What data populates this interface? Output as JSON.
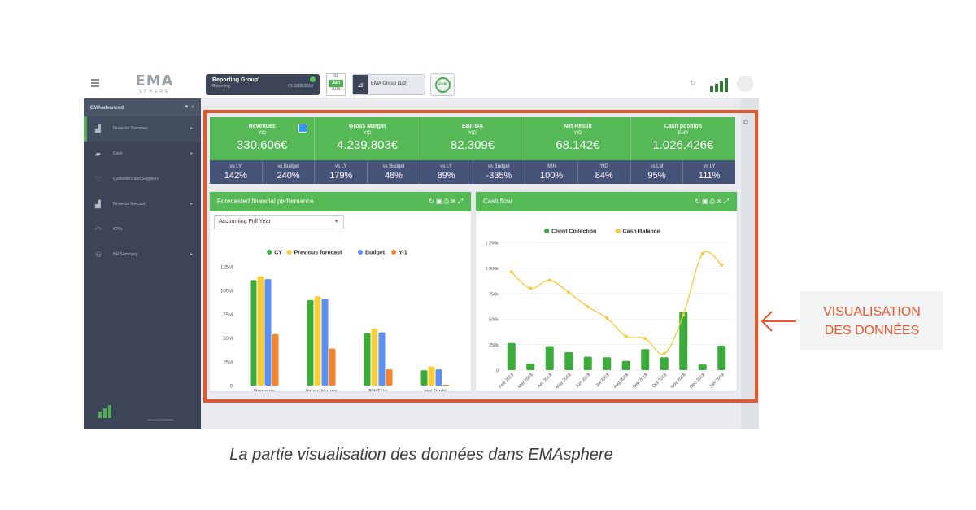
{
  "header": {
    "logo_main": "EMA",
    "logo_sub": "SPHERE",
    "reporting_group": {
      "title": "Reporting Group'",
      "sub": "Reporting",
      "right": "01.1888.2019"
    },
    "calendar": {
      "top": "31",
      "mid": "Jan",
      "bottom": "2019"
    },
    "group_label": "EMA Group (1/3)",
    "eom_label": "EoM"
  },
  "sidebar": {
    "header_label": "EMAadvanced",
    "items": [
      {
        "label": "Financial Summary",
        "icon": "chart-icon",
        "chevron": true
      },
      {
        "label": "Cash",
        "icon": "folder-icon",
        "chevron": true
      },
      {
        "label": "Customers and Suppliers",
        "icon": "handshake-icon",
        "chevron": false
      },
      {
        "label": "Financial forecast",
        "icon": "chart-icon",
        "chevron": true
      },
      {
        "label": "KPI's",
        "icon": "gauge-icon",
        "chevron": false
      },
      {
        "label": "HR Summary",
        "icon": "people-icon",
        "chevron": true
      }
    ],
    "powered_by": "Powered by EMAsphere"
  },
  "kpis": [
    {
      "title": "Revenues",
      "period": "YtD",
      "value": "330.606€"
    },
    {
      "title": "Gross Margin",
      "period": "YtD",
      "value": "4.239.803€"
    },
    {
      "title": "EBITDA",
      "period": "YtD",
      "value": "82.309€"
    },
    {
      "title": "Net Result",
      "period": "YtD",
      "value": "68.142€"
    },
    {
      "title": "Cash position",
      "period": "EoM",
      "value": "1.026.426€"
    }
  ],
  "comparisons": [
    {
      "label": "vs LY",
      "value": "142%"
    },
    {
      "label": "vs Budget",
      "value": "240%"
    },
    {
      "label": "vs LY",
      "value": "179%"
    },
    {
      "label": "vs Budget",
      "value": "48%"
    },
    {
      "label": "vs LY",
      "value": "89%"
    },
    {
      "label": "vs Budget",
      "value": "-335%"
    },
    {
      "label": "Mth",
      "value": "100%"
    },
    {
      "label": "YtD",
      "value": "84%"
    },
    {
      "label": "vs LM",
      "value": "95%"
    },
    {
      "label": "vs LY",
      "value": "111%"
    }
  ],
  "panels": {
    "forecast": {
      "title": "Forecasted financial performance",
      "select_value": "Accounting Full Year"
    },
    "cashflow": {
      "title": "Cash flow"
    }
  },
  "chart_data": [
    {
      "type": "bar",
      "title": "Forecasted financial performance",
      "categories": [
        "Revenue",
        "Gross Margin",
        "EBITDA",
        "Net Profit"
      ],
      "series": [
        {
          "name": "CY",
          "color": "#3bab3b",
          "values": [
            111,
            90,
            55,
            16
          ]
        },
        {
          "name": "Previous forecast",
          "color": "#f7cd3b",
          "values": [
            115,
            94,
            60,
            20
          ]
        },
        {
          "name": "Budget",
          "color": "#5b8ff0",
          "values": [
            112,
            91,
            56,
            17
          ]
        },
        {
          "name": "Y-1",
          "color": "#f5832a",
          "values": [
            54,
            39,
            17,
            1
          ]
        }
      ],
      "y_ticks": [
        "0",
        "25M",
        "50M",
        "75M",
        "100M",
        "125M"
      ],
      "ylim": [
        0,
        125
      ],
      "legend_position": "top-center",
      "grid": false
    },
    {
      "type": "bar+line",
      "title": "Cash flow",
      "categories": [
        "Feb 2018",
        "Mar 2018",
        "Apr 2018",
        "May 2018",
        "Jun 2018",
        "Jul 2018",
        "Aug 2018",
        "Sep 2018",
        "Oct 2018",
        "Nov 2018",
        "Dec 2018",
        "Jan 2019"
      ],
      "series": [
        {
          "name": "Client Collection",
          "type": "bar",
          "color": "#3bab3b",
          "values": [
            265000,
            65000,
            235000,
            175000,
            130000,
            125000,
            90000,
            205000,
            125000,
            570000,
            55000,
            240000
          ]
        },
        {
          "name": "Cash Balance",
          "type": "line",
          "color": "#f7c93b",
          "values": [
            960000,
            800000,
            880000,
            760000,
            620000,
            510000,
            330000,
            310000,
            160000,
            540000,
            1140000,
            1030000
          ]
        }
      ],
      "y_ticks": [
        "0",
        "250k",
        "500k",
        "750k",
        "1 000k",
        "1 250k"
      ],
      "ylim": [
        0,
        1250000
      ],
      "legend_position": "top-center",
      "grid": true
    }
  ],
  "annotation": {
    "line1": "VISUALISATION",
    "line2": "DES DONNÉES"
  },
  "caption": "La partie visualisation des données dans EMAsphere"
}
